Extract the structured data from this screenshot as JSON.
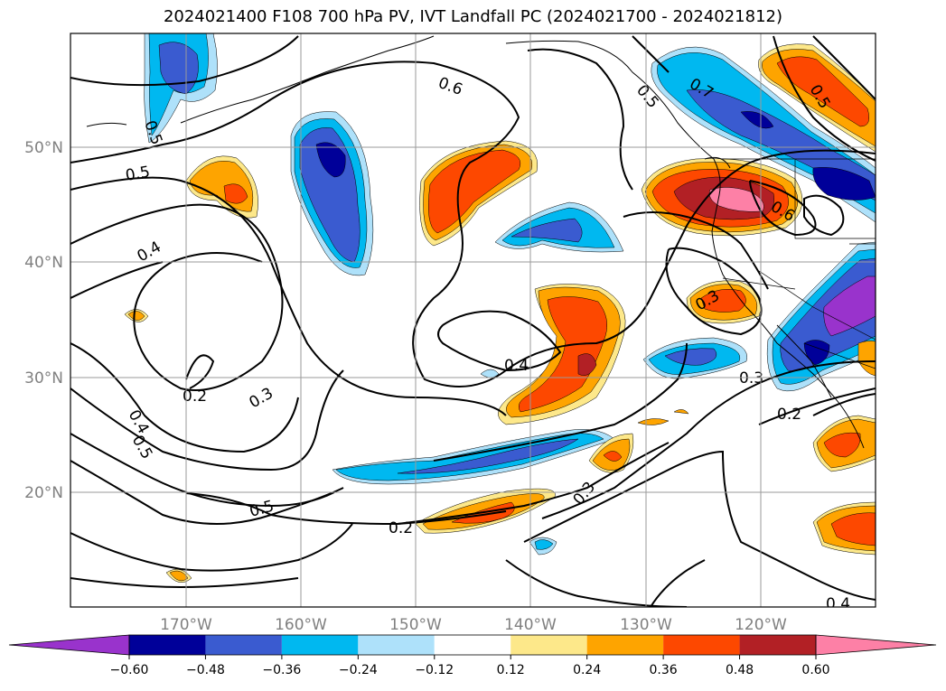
{
  "title": "2024021400 F108 700 hPa PV, IVT Landfall PC (2024021700 - 2024021812)",
  "map": {
    "lon_ticks": [
      "170°W",
      "160°W",
      "150°W",
      "140°W",
      "130°W",
      "120°W"
    ],
    "lat_ticks": [
      "50°N",
      "40°N",
      "30°N",
      "20°N"
    ],
    "contour_labels": [
      "0.6",
      "0.5",
      "0.4",
      "0.5",
      "0.2",
      "0.3",
      "0.4",
      "0.5",
      "0.5",
      "0.2",
      "0.4",
      "0.3",
      "0.3",
      "0.3",
      "0.2",
      "0.6",
      "0.7",
      "0.5",
      "0.5",
      "0.4"
    ],
    "colors": {
      "purple": "#9933cc",
      "navy": "#000099",
      "blue": "#3a5bd0",
      "cyan": "#00b8f0",
      "lightblue": "#aee1fa",
      "yellow": "#fde88a",
      "orange": "#fea400",
      "redorange": "#fd4800",
      "darkred": "#b22025",
      "pink": "#fd80a6"
    }
  },
  "colorbar": {
    "ticks": [
      "−0.60",
      "−0.48",
      "−0.36",
      "−0.24",
      "−0.12",
      "0.12",
      "0.24",
      "0.36",
      "0.48",
      "0.60"
    ],
    "colors": [
      "#9933cc",
      "#000099",
      "#3a5bd0",
      "#00b8f0",
      "#aee1fa",
      "#ffffff",
      "#fde88a",
      "#fea400",
      "#fd4800",
      "#b22025",
      "#fd80a6"
    ]
  }
}
